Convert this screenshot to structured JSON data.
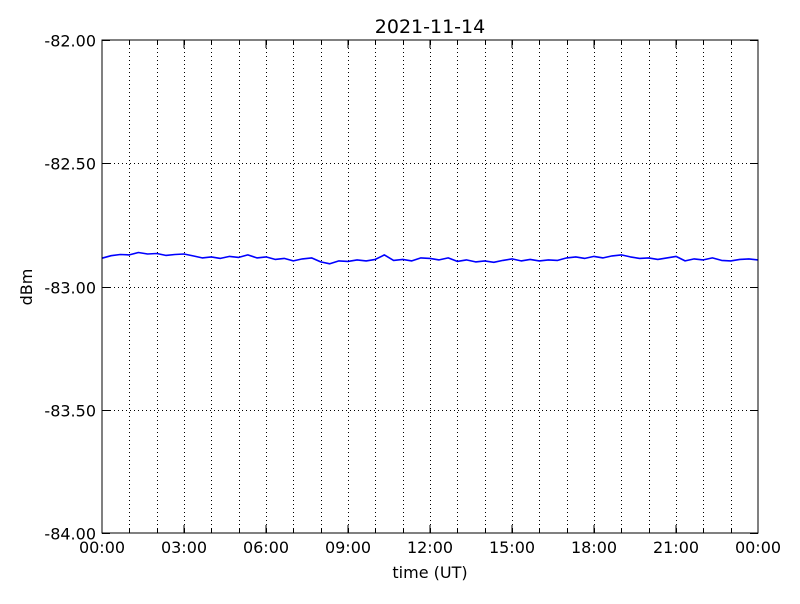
{
  "chart_data": {
    "type": "line",
    "title": "2021-11-14",
    "xlabel": "time (UT)",
    "ylabel": "dBm",
    "ylim": [
      -84.0,
      -82.0
    ],
    "xlim": [
      "00:00",
      "24:00"
    ],
    "y_ticks": [
      -84.0,
      -83.5,
      -83.0,
      -82.5,
      -82.0
    ],
    "y_tick_labels": [
      "-84.00",
      "-83.50",
      "-83.00",
      "-82.50",
      "-82.00"
    ],
    "x_tick_labels": [
      "00:00",
      "03:00",
      "06:00",
      "09:00",
      "12:00",
      "15:00",
      "18:00",
      "21:00",
      "00:00"
    ],
    "grid": true,
    "line_color": "#0000ff",
    "series": [
      {
        "x": [
          "00:00",
          "00:20",
          "00:40",
          "01:00",
          "01:20",
          "01:40",
          "02:00",
          "02:20",
          "02:40",
          "03:00",
          "03:20",
          "03:40",
          "04:00",
          "04:20",
          "04:40",
          "05:00",
          "05:20",
          "05:40",
          "06:00",
          "06:20",
          "06:40",
          "07:00",
          "07:20",
          "07:40",
          "08:00",
          "08:20",
          "08:40",
          "09:00",
          "09:20",
          "09:40",
          "10:00",
          "10:20",
          "10:40",
          "11:00",
          "11:20",
          "11:40",
          "12:00",
          "12:20",
          "12:40",
          "13:00",
          "13:20",
          "13:40",
          "14:00",
          "14:20",
          "14:40",
          "15:00",
          "15:20",
          "15:40",
          "16:00",
          "16:20",
          "16:40",
          "17:00",
          "17:20",
          "17:40",
          "18:00",
          "18:20",
          "18:40",
          "19:00",
          "19:20",
          "19:40",
          "20:00",
          "20:20",
          "20:40",
          "21:00",
          "21:20",
          "21:40",
          "22:00",
          "22:20",
          "22:40",
          "23:00",
          "23:20",
          "23:40",
          "24:00"
        ],
        "y": [
          -82.885,
          -82.875,
          -82.87,
          -82.872,
          -82.862,
          -82.868,
          -82.866,
          -82.874,
          -82.87,
          -82.868,
          -82.876,
          -82.884,
          -82.88,
          -82.886,
          -82.878,
          -82.882,
          -82.872,
          -82.884,
          -82.88,
          -82.89,
          -82.886,
          -82.896,
          -82.888,
          -82.884,
          -82.9,
          -82.908,
          -82.896,
          -82.898,
          -82.892,
          -82.896,
          -82.89,
          -82.872,
          -82.894,
          -82.89,
          -82.896,
          -82.884,
          -82.886,
          -82.892,
          -82.884,
          -82.898,
          -82.892,
          -82.9,
          -82.896,
          -82.902,
          -82.894,
          -82.888,
          -82.896,
          -82.89,
          -82.896,
          -82.892,
          -82.894,
          -82.884,
          -82.88,
          -82.886,
          -82.878,
          -82.884,
          -82.876,
          -82.872,
          -82.88,
          -82.886,
          -82.884,
          -82.89,
          -82.884,
          -82.878,
          -82.896,
          -82.888,
          -82.892,
          -82.884,
          -82.894,
          -82.896,
          -82.89,
          -82.888,
          -82.892
        ]
      }
    ]
  }
}
